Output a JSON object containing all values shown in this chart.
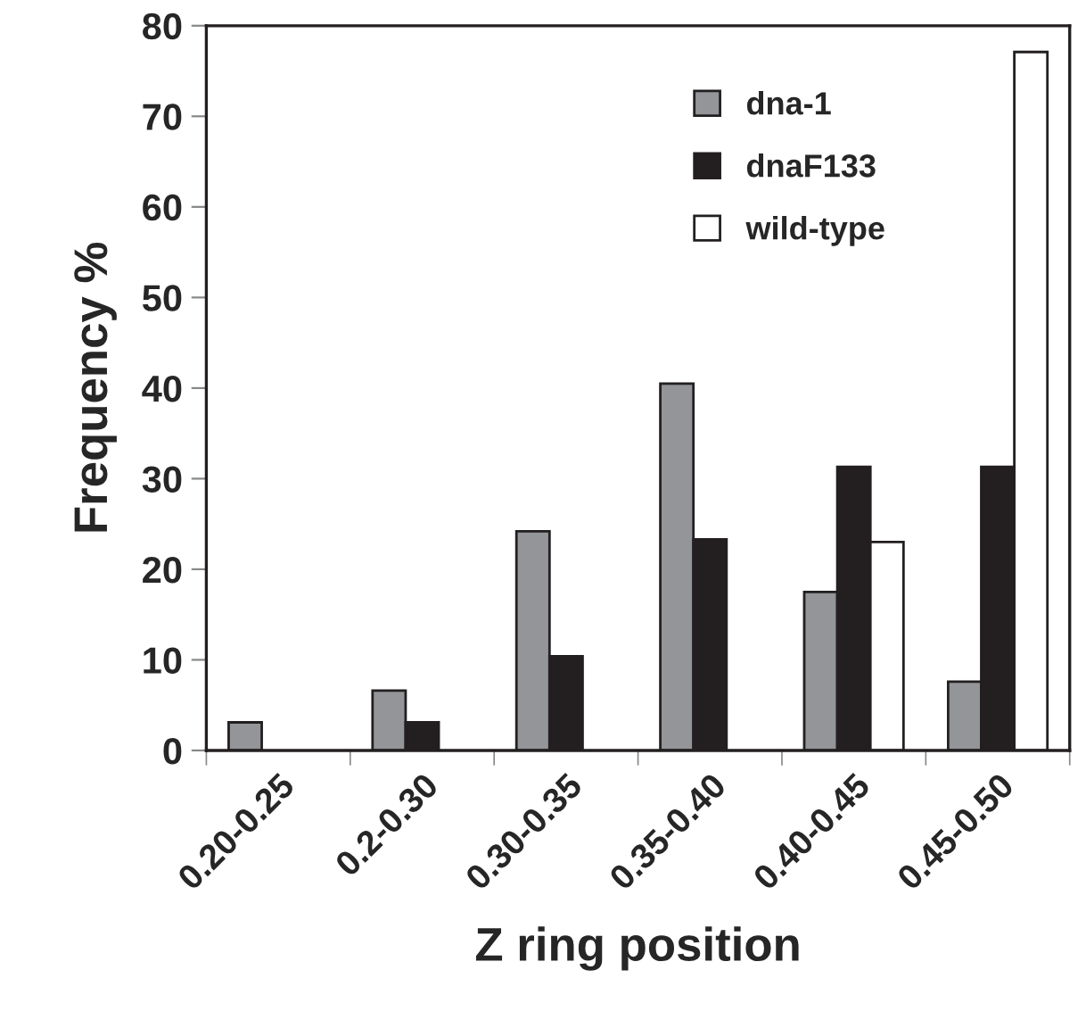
{
  "chart_data": {
    "type": "bar",
    "xlabel": "Z ring position",
    "ylabel": "Frequency %",
    "categories": [
      "0.20-0.25",
      "0.2-0.30",
      "0.30-0.35",
      "0.35-0.40",
      "0.40-0.45",
      "0.45-0.50"
    ],
    "series": [
      {
        "name": "dna-1",
        "color": "#939598",
        "values": [
          3.1,
          6.6,
          24.2,
          40.5,
          17.5,
          7.6
        ]
      },
      {
        "name": "dnaF133",
        "color": "#231f20",
        "values": [
          0,
          3.1,
          10.4,
          23.3,
          31.3,
          31.3
        ]
      },
      {
        "name": "wild-type",
        "color": "#ffffff",
        "values": [
          0,
          0,
          0,
          0,
          23.0,
          77.1
        ]
      }
    ],
    "ylim": [
      0,
      80
    ],
    "yticks": [
      0,
      10,
      20,
      30,
      40,
      50,
      60,
      70,
      80
    ],
    "grid": false,
    "legend": "top right"
  }
}
